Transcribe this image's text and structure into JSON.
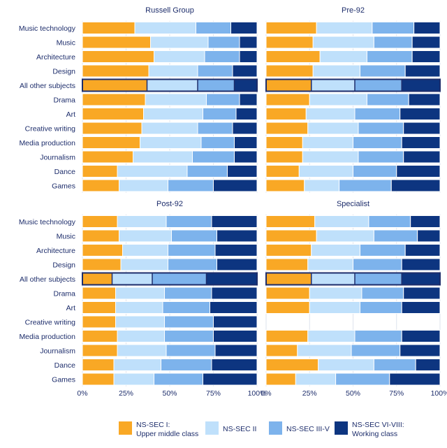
{
  "colors": {
    "nssec1": "#f9a825",
    "nssec2": "#bfe0fb",
    "nssec3": "#7db3ec",
    "nssec4": "#0d3580",
    "text": "#1d2d6b",
    "grid": "#dde3ee",
    "highlight_border": "#1d2d6b"
  },
  "chart_data": {
    "type": "bar",
    "stacked": "percent",
    "orientation": "horizontal",
    "categories": [
      "Music technology",
      "Music",
      "Architecture",
      "Design",
      "All other subjects",
      "Drama",
      "Art",
      "Creative writing",
      "Media production",
      "Journalism",
      "Dance",
      "Games"
    ],
    "highlighted_category": "All other subjects",
    "x_ticks": [
      "0%",
      "25%",
      "50%",
      "75%",
      "100%"
    ],
    "xlim": [
      0,
      100
    ],
    "grid": true,
    "legend_position": "bottom",
    "legend": [
      {
        "key": "nssec1",
        "label_line1": "NS-SEC I:",
        "label_line2": "Upper middle class"
      },
      {
        "key": "nssec2",
        "label_line1": "NS-SEC II",
        "label_line2": ""
      },
      {
        "key": "nssec3",
        "label_line1": "NS-SEC III-V",
        "label_line2": ""
      },
      {
        "key": "nssec4",
        "label_line1": "NS-SEC VI-VIII:",
        "label_line2": "Working class"
      }
    ],
    "panels": [
      {
        "title": "Russell Group",
        "rows": [
          [
            30,
            35,
            20,
            15
          ],
          [
            39,
            33,
            18,
            10
          ],
          [
            41,
            29,
            20,
            10
          ],
          [
            38,
            28,
            20,
            14
          ],
          [
            37,
            29,
            21,
            13
          ],
          [
            36,
            35,
            19,
            10
          ],
          [
            35,
            34,
            19,
            12
          ],
          [
            34,
            32,
            20,
            14
          ],
          [
            33,
            35,
            19,
            13
          ],
          [
            29,
            34,
            24,
            13
          ],
          [
            20,
            40,
            23,
            17
          ],
          [
            21,
            28,
            26,
            25
          ]
        ]
      },
      {
        "title": "Pre-92",
        "rows": [
          [
            29,
            32,
            24,
            15
          ],
          [
            27,
            35,
            22,
            16
          ],
          [
            31,
            27,
            26,
            16
          ],
          [
            27,
            27,
            26,
            20
          ],
          [
            26,
            25,
            27,
            22
          ],
          [
            25,
            33,
            24,
            18
          ],
          [
            23,
            28,
            26,
            23
          ],
          [
            24,
            29,
            26,
            21
          ],
          [
            21,
            29,
            28,
            22
          ],
          [
            21,
            32,
            26,
            21
          ],
          [
            19,
            31,
            25,
            25
          ],
          [
            22,
            20,
            30,
            28
          ]
        ]
      },
      {
        "title": "Post-92",
        "rows": [
          [
            20,
            28,
            26,
            26
          ],
          [
            21,
            30,
            26,
            23
          ],
          [
            23,
            26,
            27,
            24
          ],
          [
            22,
            27,
            28,
            23
          ],
          [
            17,
            23,
            31,
            29
          ],
          [
            19,
            28,
            27,
            26
          ],
          [
            19,
            27,
            27,
            27
          ],
          [
            19,
            28,
            28,
            25
          ],
          [
            20,
            27,
            28,
            25
          ],
          [
            20,
            28,
            28,
            24
          ],
          [
            18,
            27,
            29,
            26
          ],
          [
            18,
            23,
            28,
            31
          ]
        ]
      },
      {
        "title": "Specialist",
        "rows": [
          [
            28,
            31,
            24,
            17
          ],
          [
            29,
            33,
            25,
            13
          ],
          [
            26,
            28,
            26,
            20
          ],
          [
            24,
            26,
            28,
            22
          ],
          [
            26,
            25,
            27,
            22
          ],
          [
            25,
            30,
            24,
            21
          ],
          [
            25,
            29,
            24,
            22
          ],
          null,
          [
            24,
            27,
            27,
            22
          ],
          [
            18,
            31,
            28,
            23
          ],
          [
            30,
            32,
            24,
            14
          ],
          [
            17,
            23,
            31,
            29
          ]
        ]
      }
    ]
  }
}
